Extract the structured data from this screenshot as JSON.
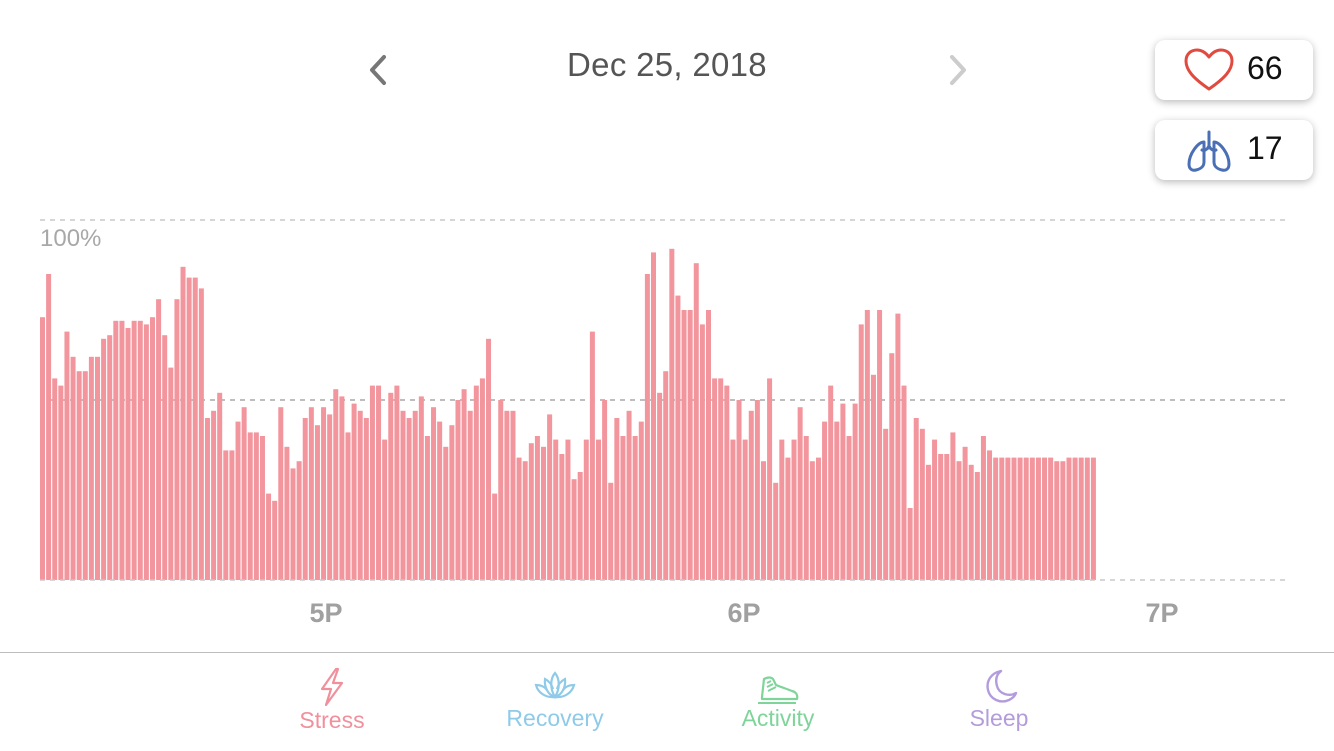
{
  "header": {
    "date": "Dec 25, 2018"
  },
  "metrics": {
    "heart_rate": {
      "value": "66",
      "icon": "heart-icon",
      "color": "#e04a3f"
    },
    "respiration": {
      "value": "17",
      "icon": "lungs-icon",
      "color": "#4a6fb5"
    }
  },
  "tabs": [
    {
      "label": "Stress",
      "icon": "lightning-icon",
      "color": "#f0909d",
      "active": true
    },
    {
      "label": "Recovery",
      "icon": "lotus-icon",
      "color": "#8fcbe8",
      "active": false
    },
    {
      "label": "Activity",
      "icon": "sneaker-icon",
      "color": "#7fd49a",
      "active": false
    },
    {
      "label": "Sleep",
      "icon": "moon-icon",
      "color": "#b49cdc",
      "active": false
    }
  ],
  "chart_data": {
    "type": "bar",
    "unit": "%",
    "ylim": [
      0,
      100
    ],
    "y_label": "100%",
    "grid": "dashed",
    "bar_color": "#f2959d",
    "x_ticks": [
      "5P",
      "6P",
      "7P"
    ],
    "values": [
      73,
      85,
      56,
      54,
      69,
      62,
      58,
      58,
      62,
      62,
      67,
      68,
      72,
      72,
      70,
      72,
      72,
      71,
      73,
      78,
      68,
      59,
      78,
      87,
      84,
      84,
      81,
      45,
      47,
      52,
      36,
      36,
      44,
      48,
      41,
      41,
      40,
      24,
      22,
      48,
      37,
      31,
      33,
      45,
      48,
      43,
      48,
      46,
      53,
      51,
      41,
      49,
      47,
      45,
      54,
      54,
      39,
      52,
      54,
      47,
      45,
      47,
      51,
      40,
      48,
      44,
      37,
      43,
      50,
      53,
      47,
      54,
      56,
      67,
      24,
      50,
      47,
      47,
      34,
      33,
      38,
      40,
      37,
      46,
      39,
      35,
      39,
      28,
      30,
      39,
      69,
      39,
      50,
      27,
      45,
      40,
      47,
      40,
      44,
      85,
      91,
      52,
      58,
      92,
      79,
      75,
      75,
      88,
      71,
      75,
      56,
      56,
      54,
      39,
      50,
      39,
      47,
      50,
      33,
      56,
      27,
      39,
      34,
      39,
      48,
      40,
      33,
      34,
      44,
      54,
      44,
      49,
      40,
      49,
      71,
      75,
      57,
      75,
      42,
      63,
      74,
      54,
      20,
      45,
      42,
      32,
      39,
      35,
      35,
      41,
      33,
      37,
      32,
      30,
      40,
      36,
      34,
      34,
      34,
      34,
      34,
      34,
      34,
      34,
      34,
      34,
      33,
      33,
      34,
      34,
      34,
      34,
      34
    ],
    "series_note": ""
  }
}
